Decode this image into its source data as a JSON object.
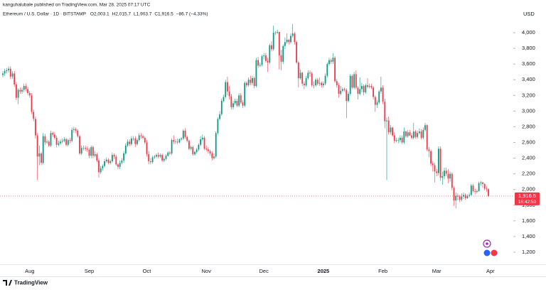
{
  "header": {
    "published": "kanguhalubale published on TradingView.com, Mar 28, 2025 07:17 UTC",
    "symbol": "Ethereum / U.S. Dollar · 1D · BITSTAMP",
    "legend_values": [
      "O2,003.1",
      "H2,015.7",
      "L1,903.7",
      "C1,916.5",
      "−86.7 (−4.33%)"
    ],
    "countdown": "16:42:59",
    "footer": "TradingView"
  },
  "chart_data": {
    "type": "candlestick",
    "y_label": "USD",
    "up_color": "#089981",
    "down_color": "#f23645",
    "ylim": [
      1050,
      4350
    ],
    "yticks": [
      {
        "value": 1200,
        "label": "1,200"
      },
      {
        "value": 1400,
        "label": "1,400"
      },
      {
        "value": 1600,
        "label": "1,600"
      },
      {
        "value": 1800,
        "label": "1,800"
      },
      {
        "value": 2000,
        "label": "2,000"
      },
      {
        "value": 2200,
        "label": "2,200"
      },
      {
        "value": 2400,
        "label": "2,400"
      },
      {
        "value": 2600,
        "label": "2,600"
      },
      {
        "value": 2800,
        "label": "2,800"
      },
      {
        "value": 3000,
        "label": "3,000"
      },
      {
        "value": 3200,
        "label": "3,200"
      },
      {
        "value": 3400,
        "label": "3,400"
      },
      {
        "value": 3600,
        "label": "3,600"
      },
      {
        "value": 3800,
        "label": "3,800"
      },
      {
        "value": 4000,
        "label": "4,000"
      }
    ],
    "grid": false,
    "last_price": {
      "value": 1916.5,
      "label": "1,916.5"
    },
    "categories": [
      null,
      null,
      null,
      null,
      null,
      null,
      null,
      null,
      null,
      null,
      null,
      null,
      null,
      null,
      "Aug",
      null,
      null,
      null,
      null,
      null,
      null,
      null,
      null,
      null,
      null,
      null,
      null,
      null,
      null,
      null,
      null,
      null,
      null,
      null,
      null,
      null,
      null,
      null,
      null,
      null,
      null,
      null,
      null,
      null,
      null,
      "Sep",
      null,
      null,
      null,
      null,
      null,
      null,
      null,
      null,
      null,
      null,
      null,
      null,
      null,
      null,
      null,
      null,
      null,
      null,
      null,
      null,
      null,
      null,
      null,
      null,
      null,
      null,
      null,
      null,
      null,
      "Oct",
      null,
      null,
      null,
      null,
      null,
      null,
      null,
      null,
      null,
      null,
      null,
      null,
      null,
      null,
      null,
      null,
      null,
      null,
      null,
      null,
      null,
      null,
      null,
      null,
      null,
      null,
      null,
      null,
      null,
      null,
      "Nov",
      null,
      null,
      null,
      null,
      null,
      null,
      null,
      null,
      null,
      null,
      null,
      null,
      null,
      null,
      null,
      null,
      null,
      null,
      null,
      null,
      null,
      null,
      null,
      null,
      null,
      null,
      null,
      null,
      null,
      "Dec",
      null,
      null,
      null,
      null,
      null,
      null,
      null,
      null,
      null,
      null,
      null,
      null,
      null,
      null,
      null,
      null,
      null,
      null,
      null,
      null,
      null,
      null,
      null,
      null,
      null,
      null,
      null,
      null,
      null,
      null,
      "2025",
      null,
      null,
      null,
      null,
      null,
      null,
      null,
      null,
      null,
      null,
      null,
      null,
      null,
      null,
      null,
      null,
      null,
      null,
      null,
      null,
      null,
      null,
      null,
      null,
      null,
      null,
      null,
      null,
      null,
      null,
      "Feb",
      null,
      null,
      null,
      null,
      null,
      null,
      null,
      null,
      null,
      null,
      null,
      null,
      null,
      null,
      null,
      null,
      null,
      null,
      null,
      null,
      null,
      null,
      null,
      null,
      null,
      null,
      null,
      "Mar",
      null,
      null,
      null,
      null,
      null,
      null,
      null,
      null,
      null,
      null,
      null,
      null,
      null,
      null,
      null,
      null,
      null,
      null,
      null,
      null,
      null,
      null,
      null,
      null,
      null,
      null,
      null,
      "Apr",
      null,
      null,
      null,
      null,
      null,
      null,
      null,
      null,
      null,
      null,
      null,
      null
    ],
    "open": [
      3460,
      3480,
      3510,
      3520,
      3540,
      3440,
      3480,
      3340,
      3170,
      3270,
      3250,
      3270,
      3320,
      3280,
      3230,
      3200,
      2990,
      2900,
      2690,
      2420,
      2460,
      2340,
      2680,
      2600,
      2610,
      2560,
      2720,
      2700,
      2660,
      2570,
      2590,
      2610,
      2620,
      2640,
      2570,
      2630,
      2620,
      2760,
      2770,
      2750,
      2680,
      2460,
      2530,
      2530,
      2520,
      2510,
      2430,
      2540,
      2430,
      2450,
      2370,
      2220,
      2270,
      2300,
      2360,
      2380,
      2340,
      2360,
      2440,
      2420,
      2320,
      2290,
      2340,
      2370,
      2460,
      2560,
      2610,
      2580,
      2650,
      2650,
      2580,
      2630,
      2690,
      2680,
      2660,
      2600,
      2450,
      2360,
      2350,
      2410,
      2420,
      2440,
      2420,
      2440,
      2370,
      2390,
      2430,
      2470,
      2460,
      2630,
      2610,
      2610,
      2600,
      2640,
      2650,
      2750,
      2670,
      2620,
      2520,
      2540,
      2450,
      2480,
      2510,
      2570,
      2640,
      2660,
      2520,
      2510,
      2490,
      2460,
      2400,
      2420,
      2720,
      2900,
      2960,
      3130,
      3180,
      3370,
      3250,
      3190,
      3050,
      3100,
      3130,
      3070,
      3200,
      3110,
      3070,
      3360,
      3330,
      3400,
      3360,
      3420,
      3320,
      3650,
      3580,
      3590,
      3700,
      3710,
      3640,
      3620,
      3840,
      3790,
      4000,
      4000,
      4010,
      3710,
      3630,
      3830,
      3880,
      3910,
      3880,
      3960,
      3990,
      3880,
      3620,
      3420,
      3490,
      3350,
      3330,
      3420,
      3490,
      3480,
      3330,
      3330,
      3400,
      3350,
      3360,
      3330,
      3350,
      3450,
      3600,
      3650,
      3630,
      3680,
      3380,
      3330,
      3220,
      3260,
      3280,
      3270,
      3130,
      3220,
      3450,
      3300,
      3470,
      3300,
      3220,
      3280,
      3320,
      3240,
      3330,
      3310,
      3320,
      3300,
      3180,
      3080,
      3110,
      3250,
      3300,
      3120,
      2870,
      2880,
      2730,
      2790,
      2690,
      2620,
      2630,
      2630,
      2660,
      2600,
      2740,
      2680,
      2730,
      2690,
      2660,
      2740,
      2670,
      2720,
      2740,
      2660,
      2760,
      2820,
      2510,
      2490,
      2330,
      2310,
      2230,
      2210,
      2520,
      2150,
      2170,
      2240,
      2200,
      2140,
      2200,
      2020,
      1860,
      1920,
      1910,
      1870,
      1910,
      1930,
      1890,
      1920,
      1930,
      2050,
      1980,
      1970,
      1980,
      2080,
      2090,
      2070,
      2010,
      2003.1,
      null,
      null,
      null,
      null,
      null,
      null,
      null,
      null,
      null,
      null,
      null,
      null,
      null
    ],
    "high": [
      3510,
      3540,
      3550,
      3570,
      3570,
      3510,
      3510,
      3370,
      3290,
      3300,
      3300,
      3350,
      3350,
      3310,
      3260,
      3230,
      3020,
      2930,
      2720,
      2560,
      2480,
      2720,
      2710,
      2640,
      2630,
      2750,
      2740,
      2730,
      2690,
      2620,
      2640,
      2650,
      2670,
      2660,
      2650,
      2660,
      2790,
      2800,
      2790,
      2770,
      2700,
      2560,
      2560,
      2560,
      2550,
      2530,
      2560,
      2560,
      2490,
      2470,
      2400,
      2300,
      2320,
      2390,
      2410,
      2400,
      2380,
      2470,
      2460,
      2440,
      2340,
      2370,
      2400,
      2490,
      2590,
      2640,
      2640,
      2680,
      2680,
      2680,
      2650,
      2720,
      2720,
      2700,
      2680,
      2630,
      2490,
      2400,
      2430,
      2440,
      2460,
      2470,
      2460,
      2460,
      2410,
      2450,
      2490,
      2490,
      2650,
      2690,
      2640,
      2650,
      2650,
      2670,
      2770,
      2780,
      2690,
      2640,
      2560,
      2560,
      2490,
      2530,
      2590,
      2680,
      2700,
      2680,
      2560,
      2540,
      2510,
      2490,
      2460,
      2740,
      2920,
      3000,
      3160,
      3210,
      3400,
      3440,
      3320,
      3220,
      3130,
      3160,
      3160,
      3230,
      3230,
      3140,
      3380,
      3380,
      3430,
      3450,
      3450,
      3440,
      3680,
      3690,
      3620,
      3720,
      3740,
      3740,
      3680,
      3860,
      3890,
      4090,
      4020,
      4040,
      4010,
      3780,
      3850,
      3940,
      3990,
      3920,
      3990,
      4110,
      4010,
      3900,
      3640,
      3530,
      3500,
      3380,
      3450,
      3520,
      3520,
      3500,
      3380,
      3420,
      3420,
      3430,
      3380,
      3380,
      3480,
      3620,
      3680,
      3670,
      3740,
      3700,
      3410,
      3360,
      3320,
      3300,
      3300,
      3290,
      3250,
      3470,
      3470,
      3500,
      3520,
      3320,
      3430,
      3360,
      3340,
      3350,
      3420,
      3350,
      3350,
      3320,
      3200,
      3140,
      3270,
      3440,
      3330,
      3160,
      2920,
      2930,
      2820,
      2800,
      2730,
      2660,
      2660,
      2690,
      2690,
      2790,
      2750,
      2760,
      2760,
      2720,
      2850,
      2760,
      2750,
      2780,
      2770,
      2790,
      2850,
      2830,
      2540,
      2510,
      2360,
      2340,
      2260,
      2550,
      2550,
      2230,
      2280,
      2280,
      2260,
      2230,
      2220,
      2040,
      1960,
      1950,
      1930,
      1950,
      1960,
      1950,
      1940,
      1960,
      2070,
      2070,
      2010,
      2000,
      2100,
      2110,
      2100,
      2080,
      2040,
      2015.7,
      null,
      null,
      null,
      null,
      null,
      null,
      null,
      null,
      null,
      null,
      null,
      null,
      null
    ],
    "low": [
      3430,
      3450,
      3480,
      3490,
      3410,
      3410,
      3310,
      3140,
      3090,
      3220,
      3220,
      3240,
      3250,
      3200,
      3170,
      2960,
      2870,
      2650,
      2120,
      2310,
      2310,
      2320,
      2570,
      2580,
      2540,
      2540,
      2670,
      2640,
      2540,
      2550,
      2570,
      2590,
      2600,
      2550,
      2550,
      2590,
      2600,
      2720,
      2720,
      2660,
      2440,
      2440,
      2500,
      2490,
      2480,
      2400,
      2400,
      2400,
      2410,
      2350,
      2150,
      2200,
      2240,
      2280,
      2340,
      2320,
      2320,
      2340,
      2390,
      2300,
      2260,
      2260,
      2320,
      2340,
      2440,
      2540,
      2550,
      2560,
      2620,
      2540,
      2560,
      2610,
      2650,
      2640,
      2580,
      2420,
      2320,
      2320,
      2330,
      2390,
      2400,
      2400,
      2400,
      2350,
      2350,
      2370,
      2420,
      2440,
      2440,
      2580,
      2580,
      2580,
      2590,
      2620,
      2630,
      2650,
      2600,
      2500,
      2500,
      2430,
      2430,
      2460,
      2490,
      2550,
      2620,
      2500,
      2490,
      2460,
      2430,
      2370,
      2380,
      2400,
      2700,
      2880,
      2940,
      3110,
      3160,
      3200,
      3150,
      3020,
      3020,
      3080,
      3050,
      3050,
      3090,
      3040,
      3050,
      3300,
      3310,
      3330,
      3330,
      3290,
      3300,
      3550,
      3560,
      3570,
      3660,
      3620,
      3500,
      3600,
      3760,
      3770,
      3970,
      3980,
      3530,
      3520,
      3600,
      3790,
      3860,
      3850,
      3860,
      3940,
      3850,
      3600,
      3300,
      3400,
      3320,
      3280,
      3310,
      3400,
      3440,
      3310,
      3290,
      3310,
      3330,
      3320,
      3300,
      3300,
      3330,
      3430,
      3580,
      3600,
      3600,
      3360,
      3300,
      3170,
      3200,
      3240,
      3250,
      2910,
      3110,
      3200,
      3280,
      3280,
      3280,
      3150,
      3200,
      3240,
      3200,
      3220,
      3290,
      3290,
      3280,
      3150,
      2990,
      3040,
      3090,
      3220,
      3090,
      2780,
      2120,
      2700,
      2700,
      2670,
      2590,
      2600,
      2590,
      2600,
      2580,
      2580,
      2660,
      2660,
      2680,
      2640,
      2640,
      2650,
      2650,
      2700,
      2640,
      2640,
      2740,
      2490,
      2410,
      2300,
      2230,
      2090,
      2170,
      2180,
      2110,
      2060,
      2130,
      2170,
      2080,
      2100,
      1990,
      1790,
      1760,
      1860,
      1840,
      1850,
      1880,
      1870,
      1880,
      1900,
      1920,
      1960,
      1940,
      1950,
      1970,
      2050,
      2020,
      1990,
      1970,
      1903.7,
      null,
      null,
      null,
      null,
      null,
      null,
      null,
      null,
      null,
      null,
      null,
      null,
      null
    ],
    "close": [
      3480,
      3510,
      3520,
      3540,
      3440,
      3480,
      3340,
      3170,
      3270,
      3250,
      3270,
      3320,
      3280,
      3230,
      3200,
      2990,
      2900,
      2690,
      2420,
      2460,
      2340,
      2680,
      2600,
      2610,
      2560,
      2720,
      2700,
      2660,
      2570,
      2590,
      2610,
      2620,
      2640,
      2570,
      2630,
      2620,
      2760,
      2770,
      2750,
      2680,
      2460,
      2530,
      2530,
      2520,
      2510,
      2430,
      2540,
      2430,
      2450,
      2370,
      2220,
      2270,
      2300,
      2360,
      2380,
      2340,
      2360,
      2440,
      2420,
      2320,
      2290,
      2340,
      2370,
      2460,
      2560,
      2610,
      2580,
      2650,
      2650,
      2580,
      2630,
      2690,
      2680,
      2660,
      2600,
      2450,
      2360,
      2350,
      2410,
      2420,
      2440,
      2420,
      2440,
      2370,
      2390,
      2430,
      2470,
      2460,
      2630,
      2610,
      2610,
      2600,
      2640,
      2650,
      2750,
      2670,
      2620,
      2520,
      2540,
      2450,
      2480,
      2510,
      2570,
      2640,
      2660,
      2520,
      2510,
      2490,
      2460,
      2400,
      2420,
      2720,
      2900,
      2960,
      3130,
      3180,
      3370,
      3250,
      3190,
      3050,
      3100,
      3130,
      3070,
      3200,
      3110,
      3070,
      3360,
      3330,
      3400,
      3360,
      3420,
      3320,
      3650,
      3580,
      3590,
      3700,
      3710,
      3640,
      3620,
      3840,
      3790,
      4000,
      4000,
      4010,
      3710,
      3630,
      3830,
      3880,
      3910,
      3880,
      3960,
      3990,
      3880,
      3620,
      3420,
      3490,
      3350,
      3330,
      3420,
      3490,
      3480,
      3330,
      3330,
      3400,
      3350,
      3360,
      3330,
      3350,
      3450,
      3600,
      3650,
      3630,
      3680,
      3380,
      3330,
      3220,
      3260,
      3280,
      3270,
      3130,
      3220,
      3450,
      3300,
      3470,
      3300,
      3220,
      3280,
      3320,
      3240,
      3330,
      3310,
      3320,
      3300,
      3180,
      3080,
      3110,
      3250,
      3300,
      3120,
      2870,
      2880,
      2730,
      2790,
      2690,
      2620,
      2630,
      2630,
      2660,
      2600,
      2740,
      2680,
      2730,
      2690,
      2660,
      2740,
      2670,
      2720,
      2740,
      2660,
      2760,
      2820,
      2510,
      2490,
      2330,
      2310,
      2230,
      2210,
      2520,
      2150,
      2170,
      2240,
      2200,
      2140,
      2200,
      2020,
      1860,
      1920,
      1910,
      1870,
      1910,
      1930,
      1890,
      1920,
      1930,
      2050,
      1980,
      1970,
      1980,
      2080,
      2090,
      2070,
      2010,
      2003.1,
      1916.5,
      null,
      null,
      null,
      null,
      null,
      null,
      null,
      null,
      null,
      null,
      null,
      null,
      null
    ]
  }
}
